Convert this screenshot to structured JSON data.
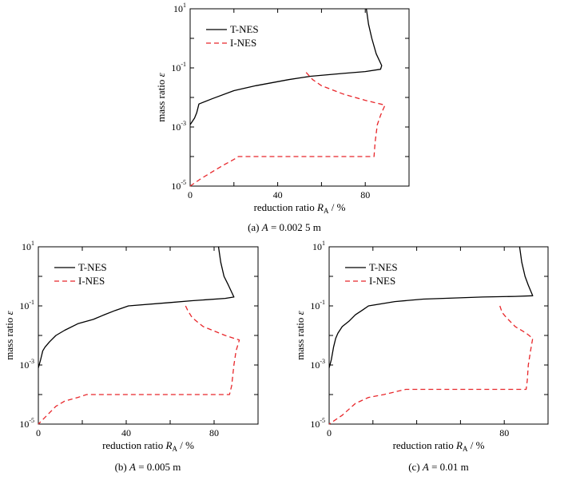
{
  "chart_data": [
    {
      "type": "line",
      "caption": "(a) A = 0.002 5 m",
      "xlabel": "reduction ratio R_A / %",
      "ylabel": "mass ratio ε",
      "xlim": [
        0,
        100
      ],
      "ylim": [
        1e-05,
        10
      ],
      "yscale": "log",
      "xticks": [
        0,
        40,
        80
      ],
      "yticks": [
        {
          "base": "10",
          "exp": "1"
        },
        {
          "base": "10",
          "exp": "-1"
        },
        {
          "base": "10",
          "exp": "-3"
        },
        {
          "base": "10",
          "exp": "-5"
        }
      ],
      "legend_position": "top-left",
      "series": [
        {
          "name": "T-NES",
          "color": "#000000",
          "dash": "solid",
          "points": [
            [
              80.5,
              10
            ],
            [
              81.5,
              3
            ],
            [
              83,
              1
            ],
            [
              85,
              0.3
            ],
            [
              87.5,
              0.12
            ],
            [
              87,
              0.09
            ],
            [
              80,
              0.075
            ],
            [
              70,
              0.065
            ],
            [
              55,
              0.052
            ],
            [
              45,
              0.04
            ],
            [
              30,
              0.025
            ],
            [
              20,
              0.017
            ],
            [
              10,
              0.009
            ],
            [
              4,
              0.006
            ],
            [
              3,
              0.003
            ],
            [
              2,
              0.002
            ],
            [
              0,
              0.0012
            ]
          ]
        },
        {
          "name": "I-NES",
          "color": "#e8262a",
          "dash": "dashed",
          "points": [
            [
              53,
              0.07
            ],
            [
              56,
              0.04
            ],
            [
              60,
              0.025
            ],
            [
              70,
              0.013
            ],
            [
              80,
              0.008
            ],
            [
              89,
              0.0055
            ],
            [
              87,
              0.0025
            ],
            [
              85.5,
              0.0012
            ],
            [
              84.5,
              0.0003
            ],
            [
              84,
              0.0001
            ],
            [
              70,
              0.0001
            ],
            [
              30,
              0.0001
            ],
            [
              22,
              0.0001
            ],
            [
              20,
              8e-05
            ],
            [
              15,
              5e-05
            ],
            [
              10,
              3e-05
            ],
            [
              5,
              1.8e-05
            ],
            [
              0,
              1e-05
            ]
          ]
        }
      ]
    },
    {
      "type": "line",
      "caption": "(b) A = 0.005 m",
      "xlabel": "reduction ratio R_A / %",
      "ylabel": "mass ratio ε",
      "xlim": [
        0,
        100
      ],
      "ylim": [
        1e-05,
        10
      ],
      "yscale": "log",
      "xticks": [
        0,
        40,
        80
      ],
      "yticks": [
        {
          "base": "10",
          "exp": "1"
        },
        {
          "base": "10",
          "exp": "-1"
        },
        {
          "base": "10",
          "exp": "-3"
        },
        {
          "base": "10",
          "exp": "-5"
        }
      ],
      "legend_position": "top-left",
      "series": [
        {
          "name": "T-NES",
          "color": "#000000",
          "dash": "solid",
          "points": [
            [
              82,
              10
            ],
            [
              83,
              3
            ],
            [
              84.5,
              1
            ],
            [
              86.5,
              0.5
            ],
            [
              89,
              0.2
            ],
            [
              85,
              0.18
            ],
            [
              70,
              0.15
            ],
            [
              60,
              0.13
            ],
            [
              41,
              0.1
            ],
            [
              35,
              0.07
            ],
            [
              30,
              0.05
            ],
            [
              25,
              0.035
            ],
            [
              18,
              0.025
            ],
            [
              12,
              0.015
            ],
            [
              8,
              0.01
            ],
            [
              5,
              0.006
            ],
            [
              3,
              0.004
            ],
            [
              2,
              0.003
            ],
            [
              1,
              0.0015
            ],
            [
              0,
              0.0008
            ]
          ]
        },
        {
          "name": "I-NES",
          "color": "#e8262a",
          "dash": "dashed",
          "points": [
            [
              67,
              0.1
            ],
            [
              68,
              0.07
            ],
            [
              70,
              0.04
            ],
            [
              75,
              0.02
            ],
            [
              85,
              0.01
            ],
            [
              91.5,
              0.007
            ],
            [
              90,
              0.003
            ],
            [
              89,
              0.001
            ],
            [
              88,
              0.0002
            ],
            [
              87,
              0.0001
            ],
            [
              70,
              0.0001
            ],
            [
              40,
              0.0001
            ],
            [
              22,
              0.0001
            ],
            [
              18,
              8e-05
            ],
            [
              12,
              6e-05
            ],
            [
              8,
              4e-05
            ],
            [
              4,
              2e-05
            ],
            [
              0,
              1e-05
            ]
          ]
        }
      ]
    },
    {
      "type": "line",
      "caption": "(c) A = 0.01 m",
      "xlabel": "reduction ratio R_A / %",
      "ylabel": "mass ratio ε",
      "xlim": [
        0,
        100
      ],
      "ylim": [
        1e-05,
        10
      ],
      "yscale": "log",
      "xticks": [
        0,
        80
      ],
      "yticks": [
        {
          "base": "10",
          "exp": "1"
        },
        {
          "base": "10",
          "exp": "-1"
        },
        {
          "base": "10",
          "exp": "-3"
        },
        {
          "base": "10",
          "exp": "-5"
        }
      ],
      "legend_position": "top-left",
      "series": [
        {
          "name": "T-NES",
          "color": "#000000",
          "dash": "solid",
          "points": [
            [
              87,
              10
            ],
            [
              88,
              3
            ],
            [
              89.5,
              1
            ],
            [
              91,
              0.5
            ],
            [
              93,
              0.22
            ],
            [
              85,
              0.21
            ],
            [
              70,
              0.2
            ],
            [
              43,
              0.17
            ],
            [
              30,
              0.14
            ],
            [
              18,
              0.1
            ],
            [
              15,
              0.07
            ],
            [
              12,
              0.05
            ],
            [
              9,
              0.03
            ],
            [
              6,
              0.02
            ],
            [
              4,
              0.012
            ],
            [
              3,
              0.008
            ],
            [
              2,
              0.004
            ],
            [
              1,
              0.0015
            ],
            [
              0,
              0.0008
            ]
          ]
        },
        {
          "name": "I-NES",
          "color": "#e8262a",
          "dash": "dashed",
          "points": [
            [
              78,
              0.1
            ],
            [
              79,
              0.06
            ],
            [
              81,
              0.04
            ],
            [
              85,
              0.02
            ],
            [
              90,
              0.012
            ],
            [
              93,
              0.008
            ],
            [
              92,
              0.003
            ],
            [
              91,
              0.001
            ],
            [
              90.5,
              0.0003
            ],
            [
              90,
              0.00015
            ],
            [
              70,
              0.00015
            ],
            [
              35,
              0.00015
            ],
            [
              25,
              0.0001
            ],
            [
              18,
              8e-05
            ],
            [
              12,
              5e-05
            ],
            [
              6,
              2e-05
            ],
            [
              0,
              1e-05
            ]
          ]
        }
      ]
    }
  ]
}
